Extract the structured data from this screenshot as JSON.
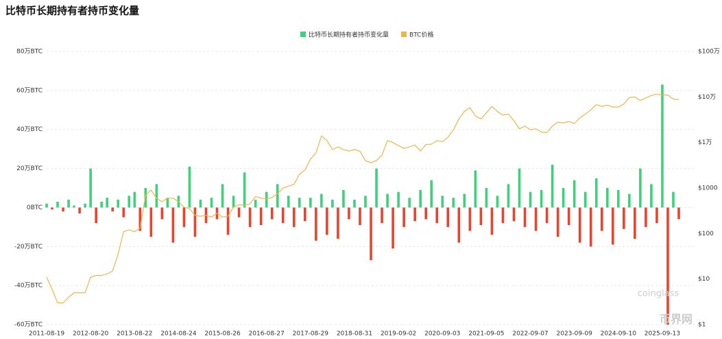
{
  "chart_data": {
    "type": "bar-line",
    "title": "比特币长期持有者持币变化量",
    "watermark": "coinglass",
    "watermark2": "币界网",
    "categories": [
      "2011-08-19",
      null,
      null,
      null,
      null,
      null,
      null,
      null,
      "2012-08-20",
      null,
      null,
      null,
      null,
      null,
      null,
      null,
      "2013-08-22",
      null,
      null,
      null,
      null,
      null,
      null,
      null,
      "2014-08-24",
      null,
      null,
      null,
      null,
      null,
      null,
      null,
      "2015-08-26",
      null,
      null,
      null,
      null,
      null,
      null,
      null,
      "2016-08-27",
      null,
      null,
      null,
      null,
      null,
      null,
      null,
      "2017-08-29",
      null,
      null,
      null,
      null,
      null,
      null,
      null,
      "2018-08-31",
      null,
      null,
      null,
      null,
      null,
      null,
      null,
      "2019-09-02",
      null,
      null,
      null,
      null,
      null,
      null,
      null,
      "2020-09-03",
      null,
      null,
      null,
      null,
      null,
      null,
      null,
      "2021-09-05",
      null,
      null,
      null,
      null,
      null,
      null,
      null,
      "2022-09-07",
      null,
      null,
      null,
      null,
      null,
      null,
      null,
      "2023-09-09",
      null,
      null,
      null,
      null,
      null,
      null,
      null,
      "2024-09-10",
      null,
      null,
      null,
      null,
      null,
      null,
      null,
      "2025-09-13",
      null,
      null,
      null
    ],
    "series": [
      {
        "name": "比特币长期持有者持币变化量",
        "color": "#3dd17a",
        "negative_color": "#e8452c",
        "values": [
          2,
          -1,
          3,
          -2,
          4,
          1,
          -3,
          2,
          20,
          -8,
          3,
          5,
          -2,
          4,
          -5,
          6,
          8,
          -12,
          10,
          -15,
          12,
          -6,
          5,
          -18,
          6,
          -10,
          21,
          -15,
          4,
          -8,
          5,
          -6,
          12,
          -14,
          6,
          -5,
          18,
          -10,
          4,
          -9,
          8,
          -6,
          12,
          -8,
          6,
          -10,
          5,
          -7,
          5,
          -17,
          7,
          -14,
          4,
          -16,
          9,
          -6,
          4,
          -9,
          6,
          -27,
          20,
          -8,
          7,
          -21,
          8,
          -10,
          5,
          -7,
          9,
          -6,
          14,
          -8,
          6,
          -10,
          5,
          -18,
          7,
          -12,
          19,
          -9,
          10,
          -14,
          6,
          -8,
          12,
          -7,
          20,
          -10,
          8,
          -12,
          9,
          -8,
          22,
          -15,
          10,
          -9,
          14,
          -18,
          8,
          -20,
          15,
          -12,
          10,
          -19,
          9,
          -11,
          7,
          -16,
          20,
          -10,
          12,
          -8,
          63,
          -60,
          8,
          -6
        ]
      },
      {
        "name": "BTC价格",
        "color": "#f0b44a",
        "axis": "y2",
        "values": [
          11,
          6,
          3,
          3,
          4,
          5,
          5,
          5,
          11,
          12,
          12,
          13,
          15,
          35,
          110,
          120,
          110,
          130,
          700,
          900,
          600,
          500,
          600,
          600,
          500,
          380,
          350,
          250,
          240,
          250,
          230,
          280,
          230,
          240,
          380,
          430,
          420,
          450,
          650,
          600,
          580,
          620,
          750,
          1000,
          1100,
          1200,
          2000,
          2500,
          4300,
          6000,
          14000,
          11000,
          7000,
          8000,
          7000,
          6500,
          7000,
          6400,
          4000,
          3600,
          4000,
          5300,
          11000,
          10000,
          8500,
          7400,
          8000,
          8800,
          6500,
          9000,
          9200,
          11000,
          10500,
          13000,
          19000,
          33000,
          48000,
          58000,
          38000,
          33000,
          45000,
          62000,
          48000,
          40000,
          42000,
          30000,
          20000,
          23000,
          19000,
          20000,
          17000,
          16500,
          23000,
          28000,
          27000,
          29000,
          26000,
          35000,
          42000,
          52000,
          68000,
          62000,
          66000,
          60000,
          60000,
          70000,
          97000,
          100000,
          84000,
          95000,
          108000,
          115000,
          112000,
          110000,
          90000,
          88000
        ]
      }
    ],
    "ylim": [
      -60,
      80
    ],
    "yticks": [
      {
        "value": -60,
        "label": "-60万BTC"
      },
      {
        "value": -40,
        "label": "-40万BTC"
      },
      {
        "value": -20,
        "label": "-20万BTC"
      },
      {
        "value": 0,
        "label": "0BTC"
      },
      {
        "value": 20,
        "label": "20万BTC"
      },
      {
        "value": 40,
        "label": "40万BTC"
      },
      {
        "value": 60,
        "label": "60万BTC"
      },
      {
        "value": 80,
        "label": "80万BTC"
      }
    ],
    "y2lim": [
      1,
      1000000
    ],
    "y2log": true,
    "y2ticks": [
      {
        "value": 1,
        "label": "$1"
      },
      {
        "value": 10,
        "label": "$10"
      },
      {
        "value": 100,
        "label": "$100"
      },
      {
        "value": 1000,
        "label": "$1000"
      },
      {
        "value": 10000,
        "label": "$1万"
      },
      {
        "value": 100000,
        "label": "$10万"
      },
      {
        "value": 1000000,
        "label": "$100万"
      }
    ],
    "grid": true,
    "legend": "top"
  }
}
